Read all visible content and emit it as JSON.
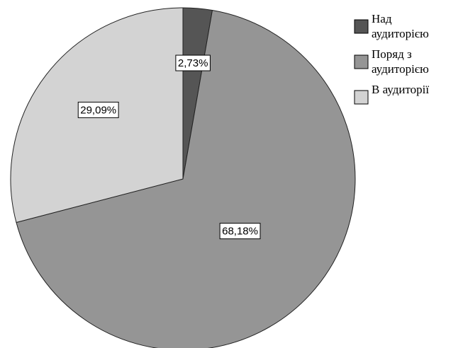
{
  "chart_data": {
    "type": "pie",
    "slices": [
      {
        "name": "Над аудиторією",
        "value": 2.73,
        "label": "2,73%",
        "color": "#555555"
      },
      {
        "name": "Поряд з аудиторією",
        "value": 68.18,
        "label": "68,18%",
        "color": "#959595"
      },
      {
        "name": "В аудиторії",
        "value": 29.09,
        "label": "29,09%",
        "color": "#d3d3d3"
      }
    ],
    "legend": {
      "placement": "top-right",
      "entries": [
        {
          "lines": [
            "Над",
            "аудиторією"
          ],
          "color": "#555555"
        },
        {
          "lines": [
            "Поряд з",
            "аудиторією"
          ],
          "color": "#959595"
        },
        {
          "lines": [
            "В аудиторії"
          ],
          "color": "#d3d3d3"
        }
      ]
    },
    "start_angle": "12 o'clock",
    "direction": "clockwise"
  }
}
